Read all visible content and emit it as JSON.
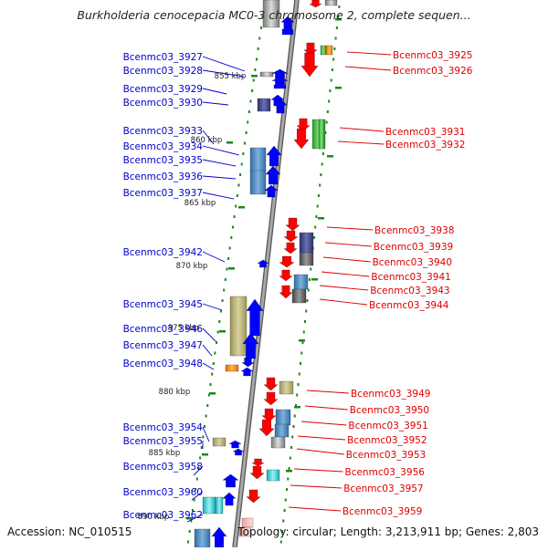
{
  "title": "Burkholderia cenocepacia MC0-3 chromosome 2, complete sequen...",
  "footer": {
    "accession": "Accession: NC_010515",
    "topology": "Topology: circular; Length: 3,213,911 bp; Genes: 2,803"
  },
  "colors": {
    "backbone": "#8c8c8c",
    "tick": "#1a8a1a",
    "left_label": "#0000cc",
    "right_label": "#dd0000",
    "forward_strand": "#0000ff",
    "reverse_strand": "#ff0000"
  },
  "kbp_ticks": [
    "855 kbp",
    "860 kbp",
    "865 kbp",
    "870 kbp",
    "875 kbp",
    "880 kbp",
    "885 kbp",
    "890 kbp"
  ],
  "left_genes": [
    "Bcenmc03_3927",
    "Bcenmc03_3928",
    "Bcenmc03_3929",
    "Bcenmc03_3930",
    "Bcenmc03_3933",
    "Bcenmc03_3934",
    "Bcenmc03_3935",
    "Bcenmc03_3936",
    "Bcenmc03_3937",
    "Bcenmc03_3942",
    "Bcenmc03_3945",
    "Bcenmc03_3946",
    "Bcenmc03_3947",
    "Bcenmc03_3948",
    "Bcenmc03_3954",
    "Bcenmc03_3955",
    "Bcenmc03_3958",
    "Bcenmc03_3960",
    "Bcenmc03_3962"
  ],
  "right_genes": [
    "Bcenmc03_3925",
    "Bcenmc03_3926",
    "Bcenmc03_3931",
    "Bcenmc03_3932",
    "Bcenmc03_3938",
    "Bcenmc03_3939",
    "Bcenmc03_3940",
    "Bcenmc03_3941",
    "Bcenmc03_3943",
    "Bcenmc03_3944",
    "Bcenmc03_3949",
    "Bcenmc03_3950",
    "Bcenmc03_3951",
    "Bcenmc03_3952",
    "Bcenmc03_3953",
    "Bcenmc03_3956",
    "Bcenmc03_3957",
    "Bcenmc03_3959"
  ]
}
